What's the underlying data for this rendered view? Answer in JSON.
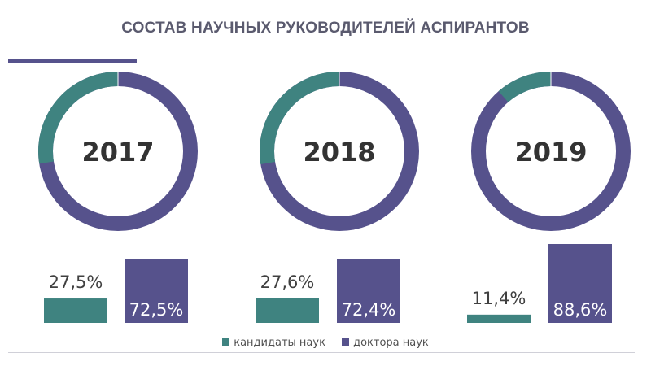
{
  "title": "СОСТАВ НАУЧНЫХ РУКОВОДИТЕЛЕЙ АСПИРАНТОВ",
  "colors": {
    "candidates": "#3f8380",
    "doctors": "#56528c",
    "title": "#5a5a6e"
  },
  "chart_data": {
    "type": "pie",
    "subtype": "donut with paired bars",
    "series_names": [
      "кандидаты наук",
      "доктора наук"
    ],
    "charts": [
      {
        "year": "2017",
        "values": [
          27.5,
          72.5
        ],
        "labels": [
          "27,5%",
          "72,5%"
        ]
      },
      {
        "year": "2018",
        "values": [
          27.6,
          72.4
        ],
        "labels": [
          "27,6%",
          "72,4%"
        ]
      },
      {
        "year": "2019",
        "values": [
          11.4,
          88.6
        ],
        "labels": [
          "11,4%",
          "88,6%"
        ]
      }
    ],
    "legend": {
      "position": "bottom-center",
      "items": [
        {
          "label": "кандидаты наук",
          "color": "#3f8380"
        },
        {
          "label": "доктора наук",
          "color": "#56528c"
        }
      ]
    }
  }
}
